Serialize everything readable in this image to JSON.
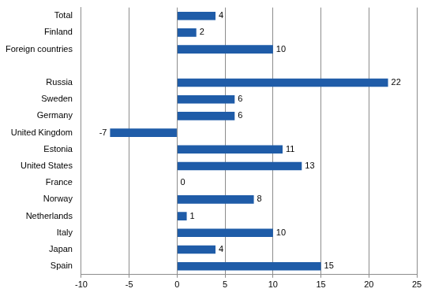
{
  "chart_data": {
    "type": "bar",
    "orientation": "horizontal",
    "categories": [
      "Total",
      "Finland",
      "Foreign countries",
      null,
      "Russia",
      "Sweden",
      "Germany",
      "United Kingdom",
      "Estonia",
      "United States",
      "France",
      "Norway",
      "Netherlands",
      "Italy",
      "Japan",
      "Spain"
    ],
    "values": [
      4,
      2,
      10,
      null,
      22,
      6,
      6,
      -7,
      11,
      13,
      0,
      8,
      1,
      10,
      4,
      15
    ],
    "color": "#1f5ca8",
    "xlim": [
      -10,
      25
    ],
    "xticks": [
      -10,
      -5,
      0,
      5,
      10,
      15,
      20,
      25
    ],
    "grid": true,
    "data_labels": true
  }
}
